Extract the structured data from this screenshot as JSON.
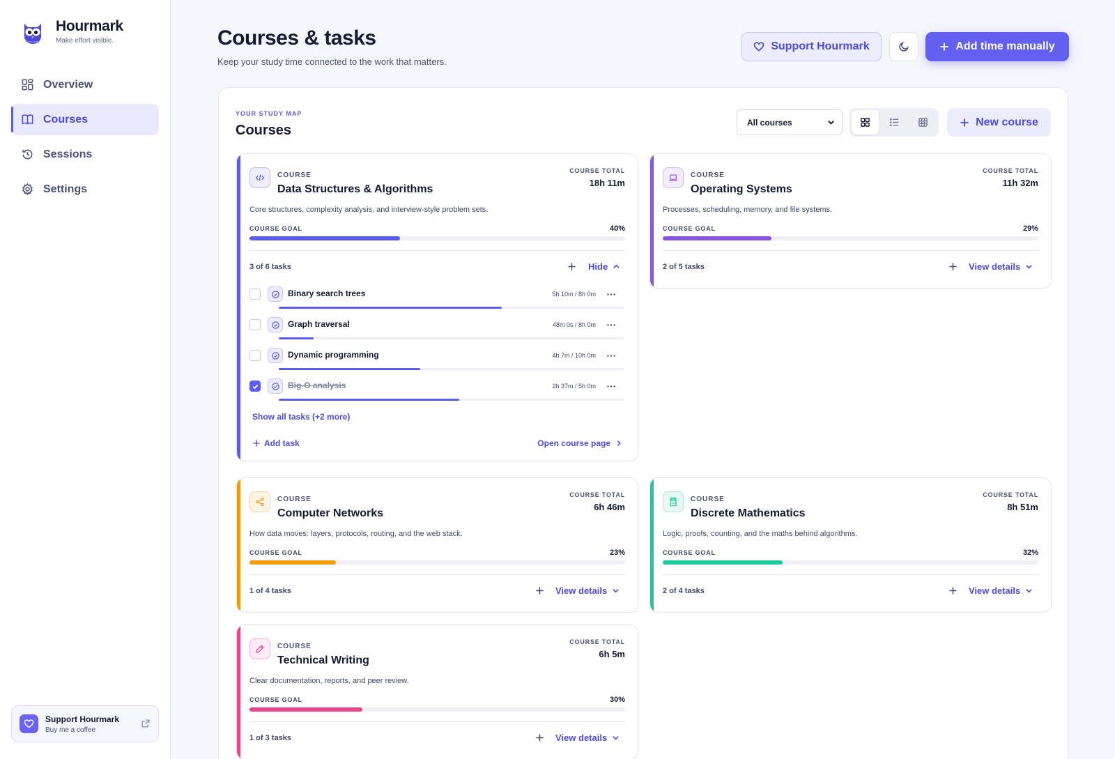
{
  "brand": {
    "name": "Hourmark",
    "tagline": "Make effort visible."
  },
  "nav": [
    {
      "label": "Overview",
      "icon": "grid-icon"
    },
    {
      "label": "Courses",
      "icon": "book-icon",
      "active": true
    },
    {
      "label": "Sessions",
      "icon": "history-icon"
    },
    {
      "label": "Settings",
      "icon": "gear-icon"
    }
  ],
  "sidebar_support": {
    "title": "Support Hourmark",
    "subtitle": "Buy me a coffee"
  },
  "header": {
    "title": "Courses & tasks",
    "subtitle": "Keep your study time connected to the work that matters.",
    "support_label": "Support Hourmark",
    "add_time_label": "Add time manually"
  },
  "panel": {
    "eyebrow": "YOUR STUDY MAP",
    "title": "Courses",
    "filter_value": "All courses",
    "new_course_label": "New course"
  },
  "labels": {
    "course": "COURSE",
    "course_total": "COURSE TOTAL",
    "course_goal": "COURSE GOAL",
    "view_details": "View details",
    "hide": "Hide",
    "show_all": "Show all tasks (+2 more)",
    "add_task": "Add task",
    "open_course_page": "Open course page"
  },
  "courses": [
    {
      "name": "Data Structures & Algorithms",
      "total": "18h 11m",
      "description": "Core structures, complexity analysis, and interview-style problem sets.",
      "goal_pct": "40%",
      "goal_fraction": 0.4,
      "tasks_summary": "3 of 6 tasks",
      "accent": "#5c5af0",
      "icon": "code-icon"
    },
    {
      "name": "Operating Systems",
      "total": "11h 32m",
      "description": "Processes, scheduling, memory, and file systems.",
      "goal_pct": "29%",
      "goal_fraction": 0.29,
      "tasks_summary": "2 of 5 tasks",
      "accent": "#8b52e6",
      "icon": "laptop-icon"
    },
    {
      "name": "Computer Networks",
      "total": "6h 46m",
      "description": "How data moves: layers, protocols, routing, and the web stack.",
      "goal_pct": "23%",
      "goal_fraction": 0.23,
      "tasks_summary": "1 of 4 tasks",
      "accent": "#f29b11",
      "icon": "share-icon"
    },
    {
      "name": "Discrete Mathematics",
      "total": "8h 51m",
      "description": "Logic, proofs, counting, and the maths behind algorithms.",
      "goal_pct": "32%",
      "goal_fraction": 0.32,
      "tasks_summary": "2 of 4 tasks",
      "accent": "#22c99a",
      "icon": "calculator-icon"
    },
    {
      "name": "Technical Writing",
      "total": "6h 5m",
      "description": "Clear documentation, reports, and peer review.",
      "goal_pct": "30%",
      "goal_fraction": 0.3,
      "tasks_summary": "1 of 3 tasks",
      "accent": "#e8458b",
      "icon": "pencil-icon"
    }
  ],
  "tasks": [
    {
      "name": "Binary search trees",
      "time": "5h 10m / 8h 0m",
      "done": false,
      "progress": 0.646
    },
    {
      "name": "Graph traversal",
      "time": "48m 0s / 8h 0m",
      "done": false,
      "progress": 0.1
    },
    {
      "name": "Dynamic programming",
      "time": "4h 7m / 10h 0m",
      "done": false,
      "progress": 0.41
    },
    {
      "name": "Big-O analysis",
      "time": "2h 37m / 5h 0m",
      "done": true,
      "progress": 0.523
    }
  ]
}
